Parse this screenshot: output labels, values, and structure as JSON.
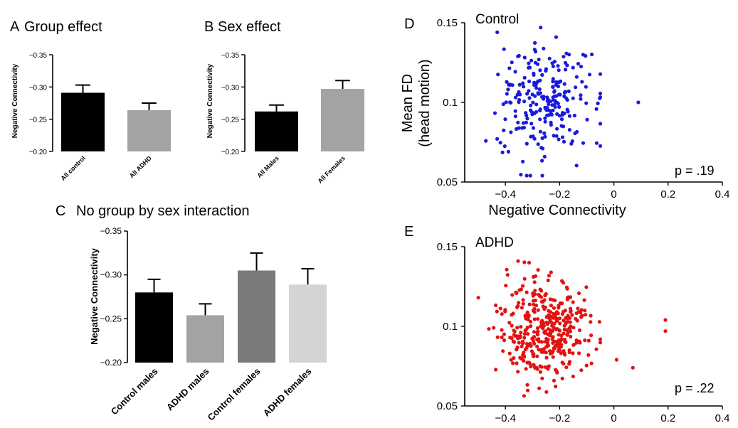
{
  "chart_data": [
    {
      "id": "A",
      "type": "bar",
      "panel_letter": "A",
      "title": "Group effect",
      "ylabel": "Negative Connectivity",
      "yticks": [
        "−0.35",
        "−0.30",
        "−0.25",
        "−0.20"
      ],
      "ylim": [
        -0.2,
        -0.35
      ],
      "categories": [
        "All control",
        "All ADHD"
      ],
      "values": [
        -0.291,
        -0.264
      ],
      "errors": [
        0.012,
        0.011
      ],
      "colors": [
        "#000000",
        "#a3a3a3"
      ]
    },
    {
      "id": "B",
      "type": "bar",
      "panel_letter": "B",
      "title": "Sex effect",
      "ylabel": "Negative Connectivity",
      "yticks": [
        "−0.35",
        "−0.30",
        "−0.25",
        "−0.20"
      ],
      "ylim": [
        -0.2,
        -0.35
      ],
      "categories": [
        "All Males",
        "All Females"
      ],
      "values": [
        -0.262,
        -0.297
      ],
      "errors": [
        0.01,
        0.013
      ],
      "colors": [
        "#000000",
        "#a3a3a3"
      ]
    },
    {
      "id": "C",
      "type": "bar",
      "panel_letter": "C",
      "title": "No group by sex interaction",
      "ylabel": "Negative Connectivity",
      "yticks": [
        "−0.35",
        "−0.30",
        "−0.25",
        "−0.20"
      ],
      "ylim": [
        -0.2,
        -0.35
      ],
      "categories": [
        "Control males",
        "ADHD males",
        "Control females",
        "ADHD females"
      ],
      "values": [
        -0.28,
        -0.254,
        -0.305,
        -0.289
      ],
      "errors": [
        0.015,
        0.013,
        0.02,
        0.018
      ],
      "colors": [
        "#000000",
        "#a3a3a3",
        "#7a7a7a",
        "#d4d4d4"
      ]
    },
    {
      "id": "D",
      "type": "scatter",
      "panel_letter": "D",
      "group_label": "Control",
      "xlabel": "Negative Connectivity",
      "ylabel_line1": "Mean FD",
      "ylabel_line2": "(head motion)",
      "xlim": [
        -0.55,
        0.4
      ],
      "ylim": [
        0.05,
        0.15
      ],
      "xticks": [
        "−0.4",
        "−0.2",
        "0",
        "0.2",
        "0.4"
      ],
      "yticks": [
        "0.15",
        "0.1",
        "0.05"
      ],
      "p_value": "p = .19",
      "color": "#1a1adb",
      "n_points": 240,
      "x_center": -0.26,
      "x_spread": 0.085,
      "y_center": 0.1,
      "y_spread": 0.018,
      "outliers": [
        [
          0.09,
          0.1
        ],
        [
          -0.43,
          0.144
        ],
        [
          -0.27,
          0.147
        ]
      ]
    },
    {
      "id": "E",
      "type": "scatter",
      "panel_letter": "E",
      "group_label": "ADHD",
      "xlabel": "",
      "ylim": [
        0.05,
        0.15
      ],
      "xlim": [
        -0.55,
        0.4
      ],
      "xticks": [
        "−0.4",
        "−0.2",
        "0",
        "0.2",
        "0.4"
      ],
      "yticks": [
        "0.15",
        "0.1",
        "0.05"
      ],
      "p_value": "p = .22",
      "color": "#e31212",
      "n_points": 380,
      "x_center": -0.25,
      "x_spread": 0.085,
      "y_center": 0.098,
      "y_spread": 0.016,
      "outliers": [
        [
          0.19,
          0.104
        ],
        [
          0.19,
          0.097
        ],
        [
          0.07,
          0.074
        ],
        [
          0.01,
          0.079
        ],
        [
          -0.5,
          0.118
        ]
      ]
    }
  ]
}
